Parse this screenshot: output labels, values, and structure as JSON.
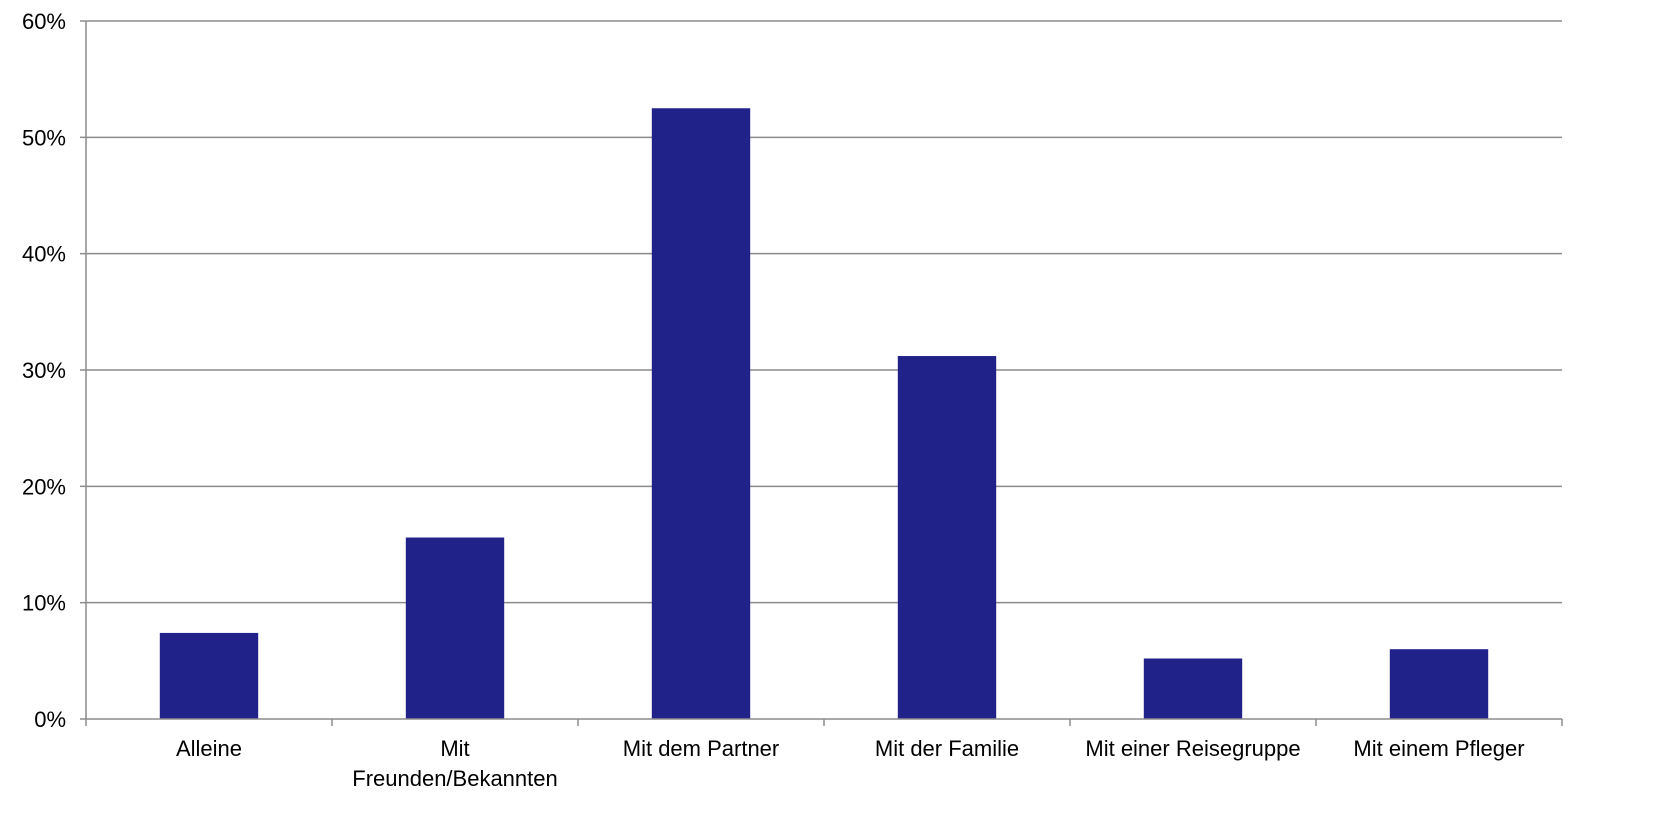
{
  "chart_data": {
    "type": "bar",
    "title": "",
    "xlabel": "",
    "ylabel": "",
    "categories": [
      [
        "Alleine"
      ],
      [
        "Mit",
        "Freunden/Bekannten"
      ],
      [
        "Mit dem Partner"
      ],
      [
        "Mit der Familie"
      ],
      [
        "Mit einer Reisegruppe"
      ],
      [
        "Mit einem Pfleger"
      ]
    ],
    "values": [
      7.4,
      15.6,
      52.5,
      31.2,
      5.2,
      6.0
    ],
    "ylim": [
      0,
      60
    ],
    "yticks": [
      0,
      10,
      20,
      30,
      40,
      50,
      60
    ],
    "ytick_labels": [
      "0%",
      "10%",
      "20%",
      "30%",
      "40%",
      "50%",
      "60%"
    ],
    "grid": true,
    "legend": "none",
    "bar_color": "#21218a",
    "grid_color": "#8c8c8c"
  }
}
